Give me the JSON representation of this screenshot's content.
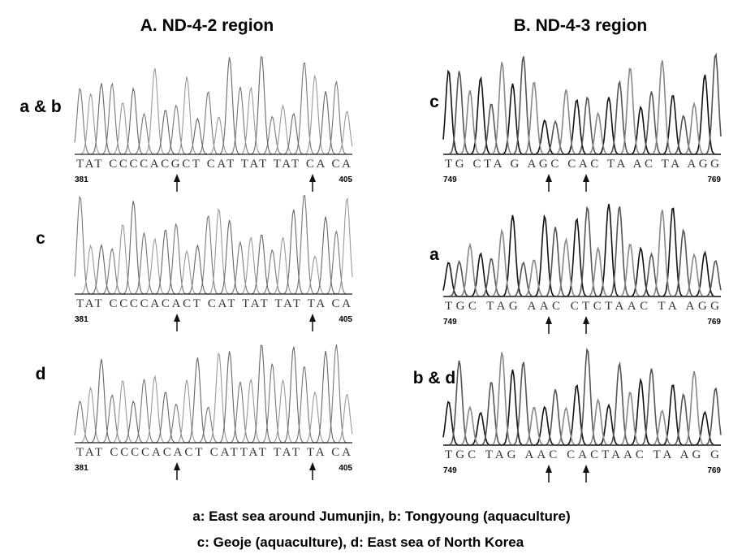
{
  "panels": [
    {
      "title": "A. ND-4-2 region",
      "rows": [
        {
          "label": "a & b",
          "sequence": "TAT CCCCACGCT CAT TAT TAT CA CA",
          "start": 381,
          "end": 405
        },
        {
          "label": "c",
          "sequence": "TAT CCCCACACT CAT TAT TAT TA CA",
          "start": 381,
          "end": 405
        },
        {
          "label": "d",
          "sequence": "TAT CCCCACACT CATTAT TAT TA CA",
          "start": 381,
          "end": 405
        }
      ]
    },
    {
      "title": "B. ND-4-3 region",
      "rows": [
        {
          "label": "c",
          "sequence": "TG CTA G AGC CAC TA AC TA AGG",
          "start": 749,
          "end": 769
        },
        {
          "label": "a",
          "sequence": "TGC TAG AAC CTCTAAC TA AGG",
          "start": 749,
          "end": 769
        },
        {
          "label": "b & d",
          "sequence": "TGC TAG AAC CACTAAC TA AG G",
          "start": 749,
          "end": 769
        }
      ]
    }
  ],
  "legend": [
    "a: East sea around Jumunjin, b: Tongyoung (aquaculture)",
    "c: Geoje (aquaculture), d: East sea of North Korea"
  ]
}
